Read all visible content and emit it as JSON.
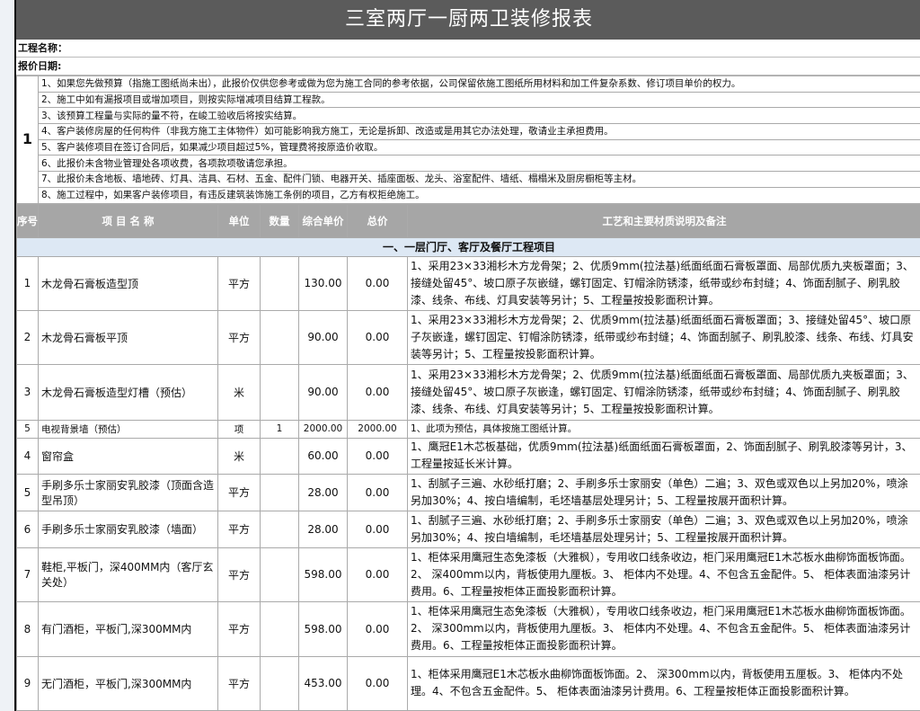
{
  "title": "三室两厅一厨两卫装修报表",
  "project_name_label": "工程名称：",
  "quote_date_label": "报价日期:",
  "notes": {
    "index": "1",
    "items": [
      "1、如果您先做预算（指施工图纸尚未出），此报价仅供您参考或做为您为施工合同的参考依据，公司保留依施工图纸所用材料和加工件复杂系数、修订项目单价的权力。",
      "2、施工中如有漏报项目或增加项目，则按实际增减项目结算工程款。",
      "3、该预算工程量与实际的量不符，在峻工验收后将按实结算。",
      "4、客户装修房屋的任何构件（非我方施工主体物件）如可能影响我方施工，无论是拆卸、改造或是用其它办法处理，敬请业主承担费用。",
      "5、客户装修项目在签订合同后，如果减少项目超过5%，管理费将按原造价收取。",
      "6、此报价未含物业管理处各项收费，各项款项敬请您承担。",
      "7、此报价未含地板、墙地砖、灯具、洁具、石材、五金、配件门锁、电器开关、插座面板、龙头、浴室配件、墙纸、榻榻米及厨房橱柜等主材。",
      "8、施工过程中，如果客户装修项目，有违反建筑装饰施工条例的项目，乙方有权拒绝施工。"
    ]
  },
  "columns": {
    "seq": "序号",
    "name": "项 目 名 称",
    "unit": "单位",
    "qty": "数量",
    "price": "综合单价",
    "total": "总价",
    "desc": "工艺和主要材质说明及备注"
  },
  "section": "一、一层门厅、客厅及餐厅工程项目",
  "rows": [
    {
      "seq": "1",
      "name": "木龙骨石膏板造型顶",
      "unit": "平方",
      "qty": "",
      "price": "130.00",
      "total": "0.00",
      "desc": "1、采用23×33湘杉木方龙骨架；2、优质9mm(拉法基)纸面纸面石膏板罩面、局部优质九夹板罩面；3、接缝处留45°、坡口原子灰嵌缝，螺钉固定、钉帽涂防锈漆，纸带或纱布封缝；4、饰面刮腻子、刷乳胶漆、线条、布线、灯具安装等另计；5、工程量按投影面积计算。"
    },
    {
      "seq": "2",
      "name": "木龙骨石膏板平顶",
      "unit": "平方",
      "qty": "",
      "price": "90.00",
      "total": "0.00",
      "desc": "1、采用23×33湘杉木方龙骨架；2、优质9mm(拉法基)纸面纸面石膏板罩面；3、接缝处留45°、坡口原子灰嵌逢，螺钉固定、钉帽涂防锈漆，纸带或纱布封缝；4、饰面刮腻子、刷乳胶漆、线条、布线、灯具安装等另计；5、工程量按投影面积计算。"
    },
    {
      "seq": "3",
      "name": "木龙骨石膏板造型灯槽（预估）",
      "unit": "米",
      "qty": "",
      "price": "90.00",
      "total": "0.00",
      "desc": "1、采用23×33湘杉木方龙骨架；2、优质9mm(拉法基)纸面纸面石膏板罩面、局部优质九夹板罩面；3、接缝处留45°、坡口原子灰嵌逢，螺钉固定、钉帽涂防锈漆，纸带或纱布封缝；4、饰面刮腻子、刷乳胶漆、线条、布线、灯具安装等另计；5、工程量按投影面积计算。"
    },
    {
      "seq": "5",
      "name": "电视背景墙（预估）",
      "unit": "项",
      "qty": "1",
      "price": "2000.00",
      "total": "2000.00",
      "desc": "1、此项为预估，具体按施工图纸计算。"
    },
    {
      "seq": "4",
      "name": "窗帘盒",
      "unit": "米",
      "qty": "",
      "price": "60.00",
      "total": "0.00",
      "desc": "1、鹰冠E1木芯板基础，优质9mm(拉法基)纸面纸面石膏板罩面，2、饰面刮腻子、刷乳胶漆等另计，3、工程量按延长米计算。"
    },
    {
      "seq": "5",
      "name": "手刷多乐士家丽安乳胶漆（顶面含造型吊顶）",
      "unit": "平方",
      "qty": "",
      "price": "28.00",
      "total": "0.00",
      "desc": "1、刮腻子三遍、水砂纸打磨；2、手刷多乐士家丽安（单色）二遍；3、双色或双色以上另加20%，喷涂另加30%；4、按白墙编制，毛坯墙基层处理另计；5、工程量按展开面积计算。"
    },
    {
      "seq": "6",
      "name": "手刷多乐士家丽安乳胶漆（墙面）",
      "unit": "平方",
      "qty": "",
      "price": "28.00",
      "total": "0.00",
      "desc": "1、刮腻子三遍、水砂纸打磨；2、手刷多乐士家丽安（单色）二遍；3、双色或双色以上另加20%，喷涂另加30%；4、按白墙编制，毛坯墙基层处理另计；5、工程量按展开面积计算。"
    },
    {
      "seq": "7",
      "name": "鞋柜,平板门，深400MM内（客厅玄关处）",
      "unit": "平方",
      "qty": "",
      "price": "598.00",
      "total": "0.00",
      "desc": "1、柜体采用鹰冠生态免漆板（大雅枫），专用收口线条收边，柜门采用鹰冠E1木芯板水曲柳饰面板饰面。2、 深400mm以内，背板使用九厘板。3、 柜体内不处理。4、不包含五金配件。5、 柜体表面油漆另计费用。6、工程量按柜体正面投影面积计算。"
    },
    {
      "seq": "8",
      "name": "有门酒柜，平板门,深300MM内",
      "unit": "平方",
      "qty": "",
      "price": "598.00",
      "total": "0.00",
      "desc": "1、柜体采用鹰冠生态免漆板（大雅枫），专用收口线条收边，柜门采用鹰冠E1木芯板水曲柳饰面板饰面。2、 深300mm以内，背板使用九厘板。3、 柜体内不处理。4、不包含五金配件。5、 柜体表面油漆另计费用。6、工程量按柜体正面投影面积计算。"
    },
    {
      "seq": "9",
      "name": "无门酒柜，平板门,深300MM内",
      "unit": "平方",
      "qty": "",
      "price": "453.00",
      "total": "0.00",
      "desc": "1、柜体采用鹰冠E1木芯板水曲柳饰面板饰面。2、 深300mm以内，背板使用五厘板。3、 柜体内不处理。4、不包含五金配件。5、 柜体表面油漆另计费用。6、工程量按柜体正面投影面积计算。"
    }
  ]
}
